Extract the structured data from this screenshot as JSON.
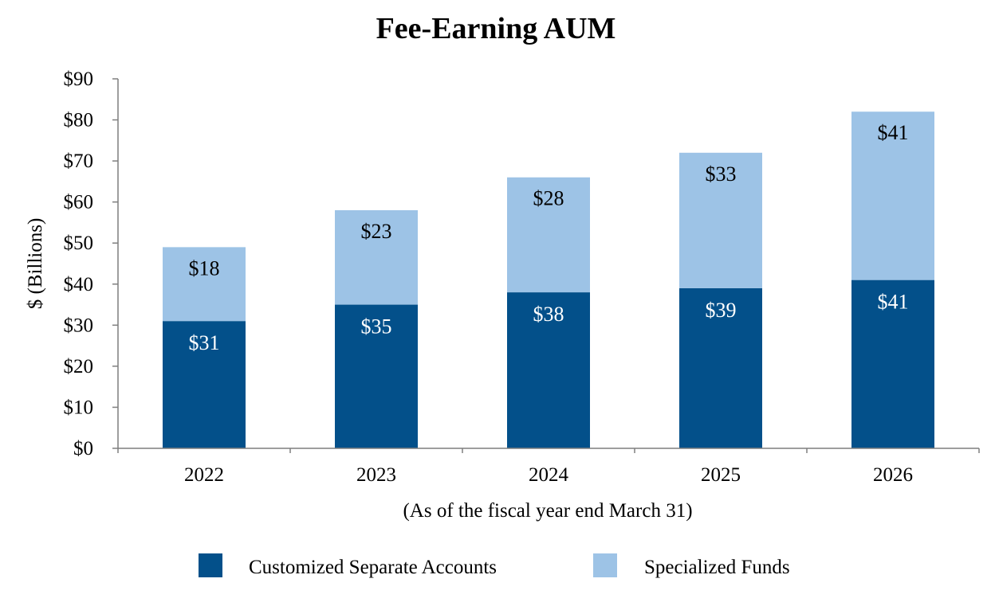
{
  "chart_data": {
    "type": "bar",
    "stacked": true,
    "title": "Fee-Earning AUM",
    "xlabel": "(As of the fiscal year end March 31)",
    "ylabel": "$ (Billions)",
    "ylim": [
      0,
      90
    ],
    "y_ticks": [
      "$0",
      "$10",
      "$20",
      "$30",
      "$40",
      "$50",
      "$60",
      "$70",
      "$80",
      "$90"
    ],
    "categories": [
      "2022",
      "2023",
      "2024",
      "2025",
      "2026"
    ],
    "series": [
      {
        "name": "Customized Separate Accounts",
        "color": "#03508a",
        "values": [
          31,
          35,
          38,
          39,
          41
        ],
        "labels": [
          "$31",
          "$35",
          "$38",
          "$39",
          "$41"
        ]
      },
      {
        "name": "Specialized Funds",
        "color": "#9dc3e6",
        "values": [
          18,
          23,
          28,
          33,
          41
        ],
        "labels": [
          "$18",
          "$23",
          "$28",
          "$33",
          "$41"
        ]
      }
    ],
    "grid": false,
    "legend_position": "bottom"
  }
}
